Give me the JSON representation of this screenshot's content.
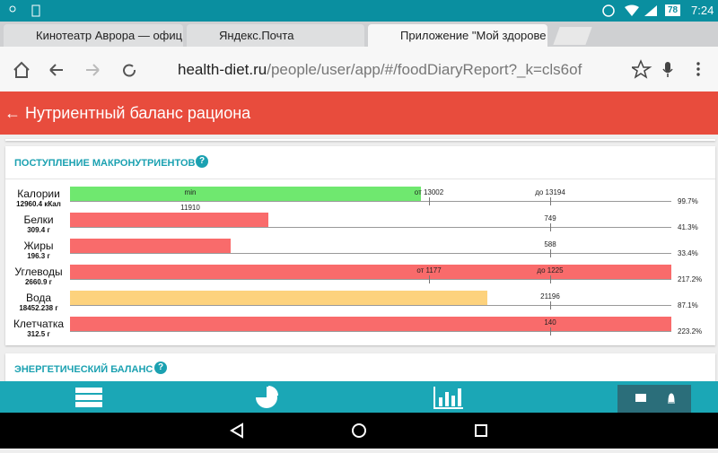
{
  "status_bar": {
    "battery": "78",
    "time": "7:24"
  },
  "tabs": [
    "Кинотеатр Аврора — официа",
    "Яндекс.Почта",
    "Приложение \"Мой здорове"
  ],
  "address_bar": {
    "domain": "health-diet.ru",
    "path": "/people/user/app/#/foodDiaryReport?_k=cls6of"
  },
  "header": {
    "title": "Нутриентный баланс рациона"
  },
  "macro_card": {
    "title": "ПОСТУПЛЕНИЕ МАКРОНУТРИЕНТОВ",
    "rows": [
      {
        "name": "Калории",
        "amount": "12960.4 кКал",
        "percent": "99.7%",
        "markers": [
          "min",
          "от 13002",
          "до 13194",
          "11910"
        ]
      },
      {
        "name": "Белки",
        "amount": "309.4 г",
        "percent": "41.3%",
        "markers": [
          "749"
        ]
      },
      {
        "name": "Жиры",
        "amount": "196.3 г",
        "percent": "33.4%",
        "markers": [
          "588"
        ]
      },
      {
        "name": "Углеводы",
        "amount": "2660.9 г",
        "percent": "217.2%",
        "markers": [
          "от 1177",
          "до 1225"
        ]
      },
      {
        "name": "Вода",
        "amount": "18452.238 г",
        "percent": "87.1%",
        "markers": [
          "21196"
        ]
      },
      {
        "name": "Клетчатка",
        "amount": "312.5 г",
        "percent": "223.2%",
        "markers": [
          "140"
        ]
      }
    ]
  },
  "energy_card": {
    "title": "ЭНЕРГЕТИЧЕСКИЙ БАЛАНС"
  }
}
